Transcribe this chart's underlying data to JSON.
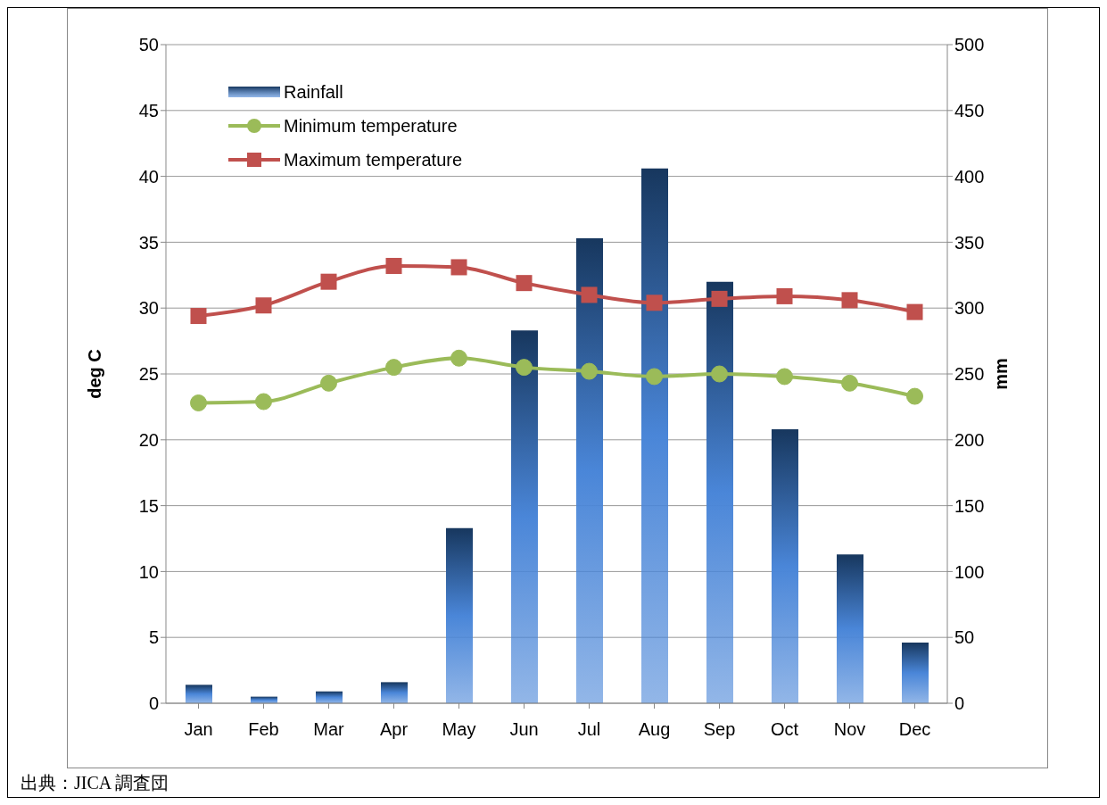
{
  "chart_data": {
    "type": "bar",
    "categories": [
      "Jan",
      "Feb",
      "Mar",
      "Apr",
      "May",
      "Jun",
      "Jul",
      "Aug",
      "Sep",
      "Oct",
      "Nov",
      "Dec"
    ],
    "series": [
      {
        "name": "Rainfall",
        "axis": "y2",
        "color": "#4a86d8",
        "values": [
          14,
          5,
          9,
          16,
          133,
          283,
          353,
          406,
          320,
          208,
          113,
          46
        ]
      },
      {
        "name": "Minimum temperature",
        "type": "line",
        "axis": "y",
        "marker": "circle",
        "color": "#9bbb59",
        "values": [
          22.8,
          22.9,
          24.3,
          25.5,
          26.2,
          25.5,
          25.2,
          24.8,
          25.0,
          24.8,
          24.3,
          23.3
        ]
      },
      {
        "name": "Maximum temperature",
        "type": "line",
        "axis": "y",
        "marker": "square",
        "color": "#c0504d",
        "values": [
          29.4,
          30.2,
          32.0,
          33.2,
          33.1,
          31.9,
          31.0,
          30.4,
          30.7,
          30.9,
          30.6,
          29.7
        ]
      }
    ],
    "ylabel": "deg C",
    "y2label": "mm",
    "ylim": [
      0,
      50
    ],
    "yticks": [
      0,
      5,
      10,
      15,
      20,
      25,
      30,
      35,
      40,
      45,
      50
    ],
    "y2lim": [
      0,
      500
    ],
    "y2ticks": [
      0,
      50,
      100,
      150,
      200,
      250,
      300,
      350,
      400,
      450,
      500
    ],
    "grid": "y",
    "legend": "top left",
    "annotations": [
      "出典：JICA 調査団"
    ]
  }
}
